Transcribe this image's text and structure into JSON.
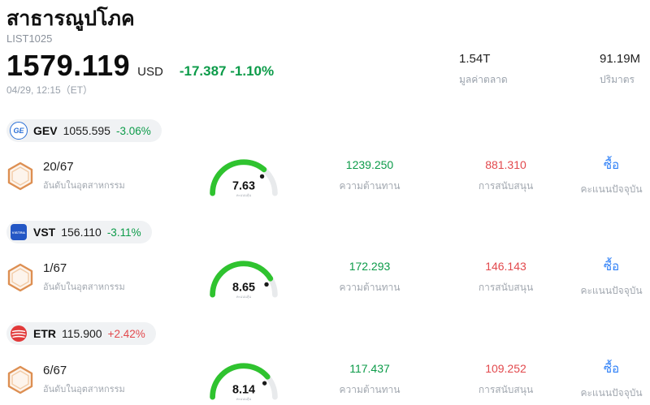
{
  "colors": {
    "down_green": "#0c9b49",
    "up_red": "#e2494d",
    "signal_blue": "#2d7ff7",
    "gauge_green": "#2fc32f"
  },
  "header": {
    "title": "สาธารณูปโภค",
    "list_id": "LIST1025",
    "price": "1579.119",
    "currency": "USD",
    "change": "-17.387 -1.10%",
    "change_dir": "down",
    "datetime": "04/29, 12:15（ET）",
    "market_cap_value": "1.54T",
    "market_cap_label": "มูลค่าตลาด",
    "volume_value": "91.19M",
    "volume_label": "ปริมาตร"
  },
  "labels": {
    "industry_rank": "อันดับในอุตสาหกรรม",
    "resistance": "ความต้านทาน",
    "support": "การสนับสนุน",
    "current_score": "คะแนนปัจจุบัน",
    "stock_score": "คะแนนหุ้น"
  },
  "stocks": [
    {
      "ticker": "GEV",
      "price": "1055.595",
      "change": "-3.06%",
      "change_dir": "down",
      "logo_text": "GE",
      "rank": "20/67",
      "score": "7.63",
      "score_value": 7.63,
      "resistance": "1239.250",
      "support": "881.310",
      "signal": "ซื้อ"
    },
    {
      "ticker": "VST",
      "price": "156.110",
      "change": "-3.11%",
      "change_dir": "down",
      "logo_text": "VISTRA",
      "rank": "1/67",
      "score": "8.65",
      "score_value": 8.65,
      "resistance": "172.293",
      "support": "146.143",
      "signal": "ซื้อ"
    },
    {
      "ticker": "ETR",
      "price": "115.900",
      "change": "+2.42%",
      "change_dir": "up",
      "logo_text": "",
      "rank": "6/67",
      "score": "8.14",
      "score_value": 8.14,
      "resistance": "117.437",
      "support": "109.252",
      "signal": "ซื้อ"
    }
  ]
}
